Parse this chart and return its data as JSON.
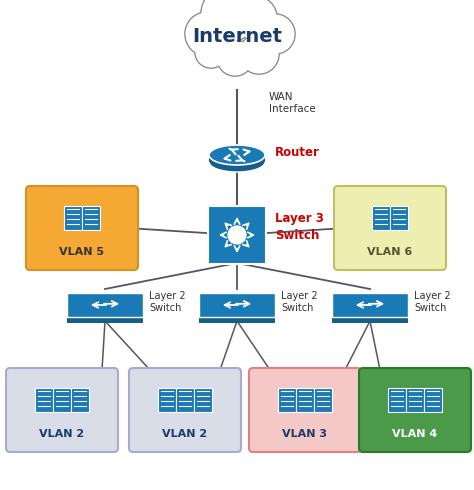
{
  "background_color": "#ffffff",
  "internet_label": "Internet",
  "wan_label": "WAN\nInterface",
  "router_label": "Router",
  "router_label_color": "#cc0000",
  "l3switch_label": "Layer 3\nSwitch",
  "l3switch_label_color": "#cc0000",
  "l2switch_label": "Layer 2\nSwitch",
  "vlan5_label": "VLAN 5",
  "vlan5_bg": "#f5a833",
  "vlan5_border": "#d4921e",
  "vlan6_label": "VLAN 6",
  "vlan6_bg": "#eeeeb0",
  "vlan6_border": "#c0c060",
  "vlan_bottom_labels": [
    "VLAN 2",
    "VLAN 2",
    "VLAN 3",
    "VLAN 4"
  ],
  "vlan_bottom_colors": [
    "#d8dde8",
    "#d8dde8",
    "#f5c8c8",
    "#4a9a4a"
  ],
  "vlan_bottom_border_colors": [
    "#aaaacc",
    "#aaaacc",
    "#e08080",
    "#2a7a2a"
  ],
  "vlan_bottom_text_colors": [
    "#1a3a6a",
    "#1a3a6a",
    "#1a3a6a",
    "#ffffff"
  ],
  "cisco_blue": "#1a7ab5",
  "cisco_blue_dark": "#155f8a",
  "line_color": "#555566",
  "text_color": "#1a3a6a",
  "cloud_color": "#ffffff",
  "cloud_border": "#888888"
}
